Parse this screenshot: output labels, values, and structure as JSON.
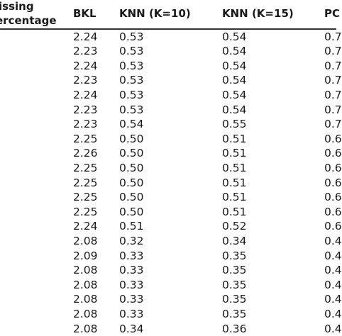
{
  "table": {
    "headers": {
      "missing_line1": "issing",
      "missing_line2": "ercentage",
      "bkl": "BKL",
      "knn10": "KNN (K=10)",
      "knn15": "KNN (K=15)",
      "pc": "PC"
    },
    "rows": [
      {
        "missing": "",
        "bkl": "2.24",
        "knn10": "0.53",
        "knn15": "0.54",
        "pc": "0.7"
      },
      {
        "missing": "",
        "bkl": "2.23",
        "knn10": "0.53",
        "knn15": "0.54",
        "pc": "0.7"
      },
      {
        "missing": "",
        "bkl": "2.24",
        "knn10": "0.53",
        "knn15": "0.54",
        "pc": "0.7"
      },
      {
        "missing": "",
        "bkl": "2.23",
        "knn10": "0.53",
        "knn15": "0.54",
        "pc": "0.7"
      },
      {
        "missing": "",
        "bkl": "2.24",
        "knn10": "0.53",
        "knn15": "0.54",
        "pc": "0.7"
      },
      {
        "missing": ")",
        "bkl": "2.23",
        "knn10": "0.53",
        "knn15": "0.54",
        "pc": "0.7"
      },
      {
        "missing": ")",
        "bkl": "2.23",
        "knn10": "0.54",
        "knn15": "0.55",
        "pc": "0.7"
      },
      {
        "missing": "",
        "bkl": "2.25",
        "knn10": "0.50",
        "knn15": "0.51",
        "pc": "0.6"
      },
      {
        "missing": "",
        "bkl": "2.26",
        "knn10": "0.50",
        "knn15": "0.51",
        "pc": "0.6"
      },
      {
        "missing": "",
        "bkl": "2.25",
        "knn10": "0.50",
        "knn15": "0.51",
        "pc": "0.6"
      },
      {
        "missing": "",
        "bkl": "2.25",
        "knn10": "0.50",
        "knn15": "0.51",
        "pc": "0.6"
      },
      {
        "missing": "",
        "bkl": "2.25",
        "knn10": "0.50",
        "knn15": "0.51",
        "pc": "0.6"
      },
      {
        "missing": ")",
        "bkl": "2.25",
        "knn10": "0.50",
        "knn15": "0.51",
        "pc": "0.6"
      },
      {
        "missing": ")",
        "bkl": "2.24",
        "knn10": "0.51",
        "knn15": "0.52",
        "pc": "0.6"
      },
      {
        "missing": "",
        "bkl": "2.08",
        "knn10": "0.32",
        "knn15": "0.34",
        "pc": "0.4"
      },
      {
        "missing": "",
        "bkl": "2.09",
        "knn10": "0.33",
        "knn15": "0.35",
        "pc": "0.4"
      },
      {
        "missing": "",
        "bkl": "2.08",
        "knn10": "0.33",
        "knn15": "0.35",
        "pc": "0.4"
      },
      {
        "missing": "",
        "bkl": "2.08",
        "knn10": "0.33",
        "knn15": "0.35",
        "pc": "0.4"
      },
      {
        "missing": "",
        "bkl": "2.08",
        "knn10": "0.33",
        "knn15": "0.35",
        "pc": "0.4"
      },
      {
        "missing": ")",
        "bkl": "2.08",
        "knn10": "0.33",
        "knn15": "0.35",
        "pc": "0.4"
      },
      {
        "missing": ")",
        "bkl": "2.08",
        "knn10": "0.34",
        "knn15": "0.36",
        "pc": "0.4"
      }
    ]
  }
}
